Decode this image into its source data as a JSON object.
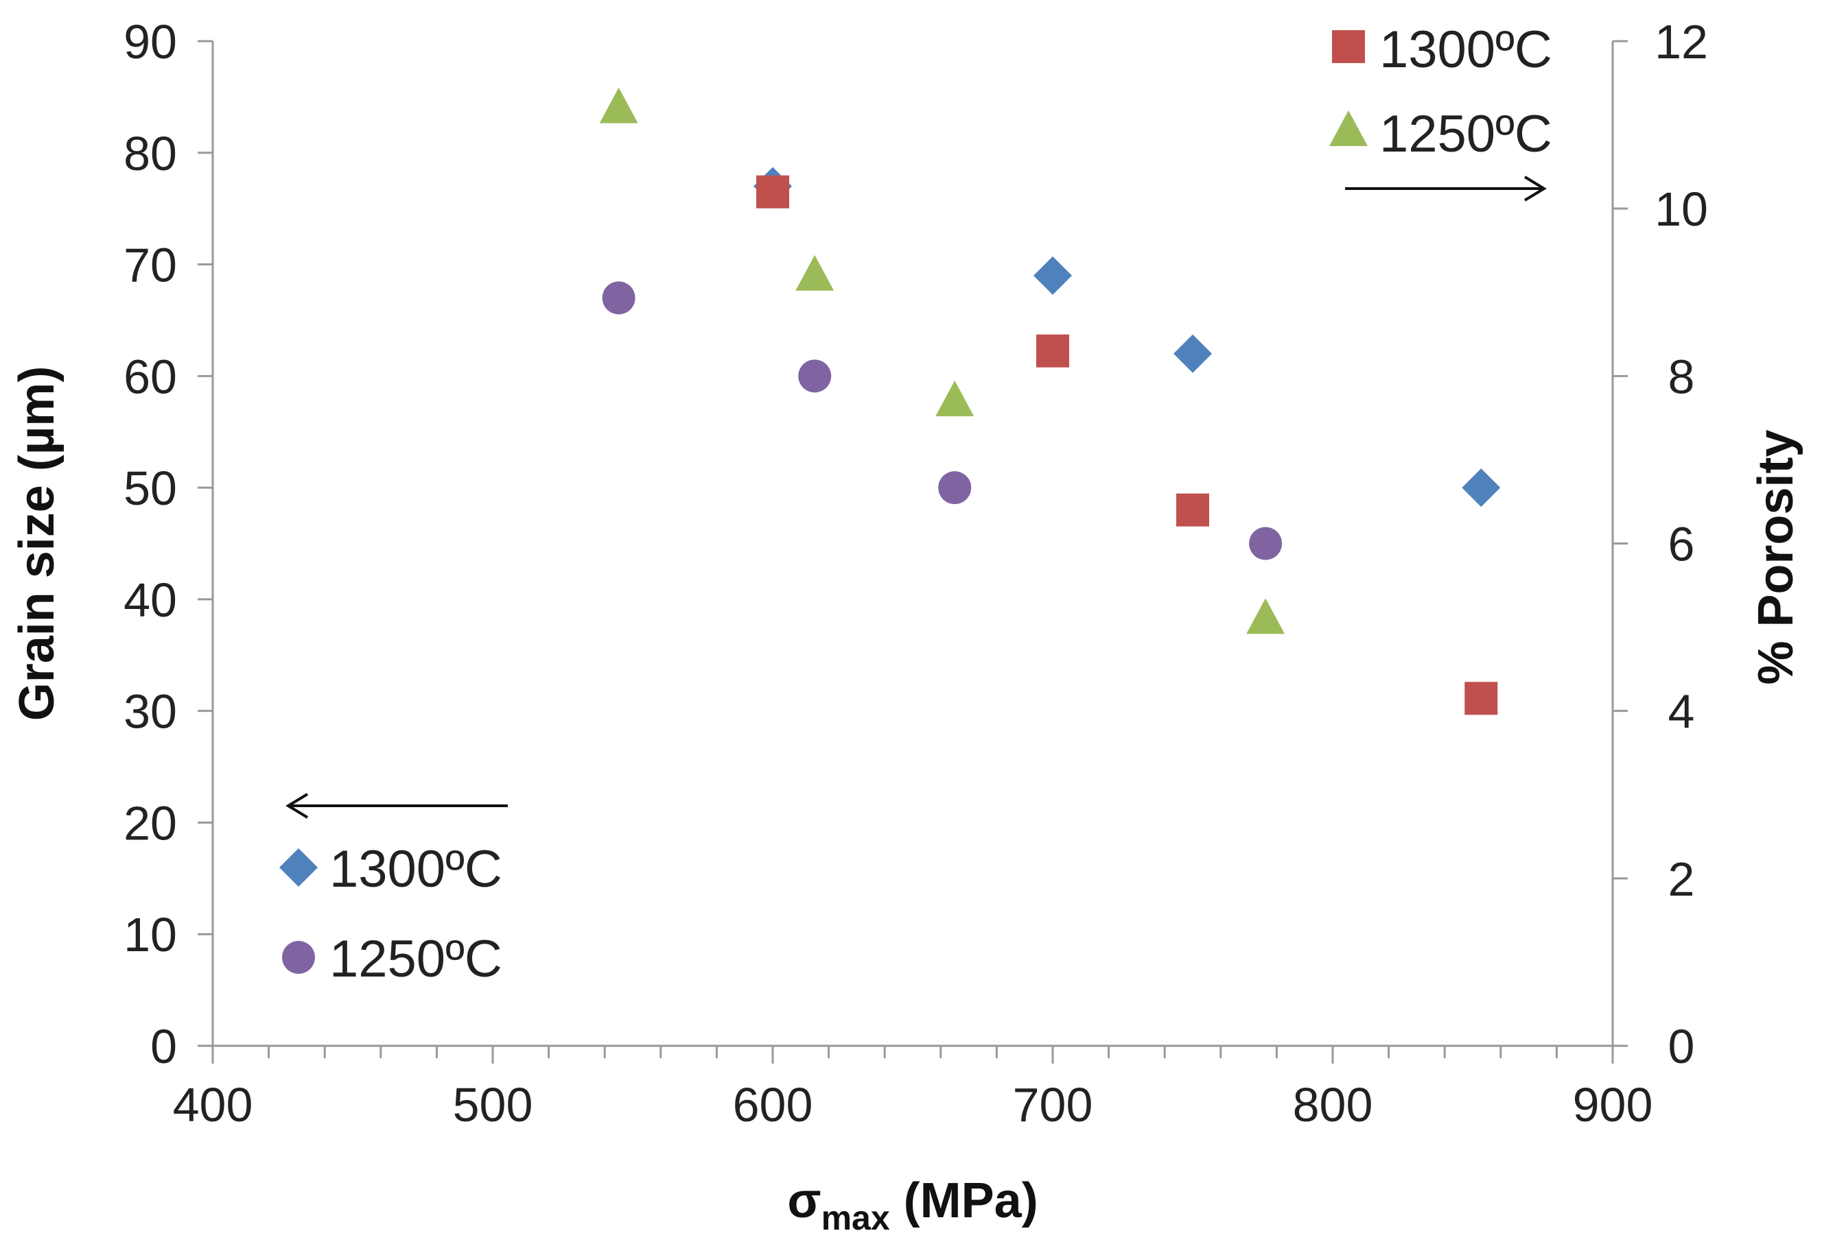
{
  "chart_data": {
    "type": "scatter",
    "title": "",
    "xlabel": {
      "main": "σ",
      "sub": "max",
      "unit": " (MPa)"
    },
    "ylabel_left": "Grain size (µm)",
    "ylabel_right": "% Porosity",
    "xlim": [
      400,
      900
    ],
    "ylim_left": [
      0,
      90
    ],
    "ylim_right": [
      0,
      12
    ],
    "x_ticks": [
      400,
      500,
      600,
      700,
      800,
      900
    ],
    "y_left_ticks": [
      0,
      10,
      20,
      30,
      40,
      50,
      60,
      70,
      80,
      90
    ],
    "y_right_ticks": [
      0,
      2,
      4,
      6,
      8,
      10,
      12
    ],
    "grid": false,
    "series": [
      {
        "name": "1300ºC",
        "axis": "left",
        "marker": "diamond",
        "color": "#4f81bd",
        "x": [
          600,
          700,
          750,
          853
        ],
        "y": [
          77,
          69,
          62,
          50
        ]
      },
      {
        "name": "1250ºC",
        "axis": "left",
        "marker": "circle",
        "color": "#8064a2",
        "x": [
          545,
          615,
          665,
          776
        ],
        "y": [
          67,
          60,
          50,
          45
        ]
      },
      {
        "name": "1300ºC",
        "axis": "right",
        "marker": "square",
        "color": "#c0504d",
        "x": [
          600,
          700,
          750,
          853
        ],
        "y": [
          10.2,
          8.3,
          6.4,
          4.15
        ]
      },
      {
        "name": "1250ºC",
        "axis": "right",
        "marker": "triangle",
        "color": "#9bbb59",
        "x": [
          545,
          615,
          665,
          776
        ],
        "y": [
          11.2,
          9.2,
          7.7,
          5.1
        ]
      }
    ],
    "legend_left": {
      "placement": "bottom-left",
      "items": [
        {
          "label": "1300ºC",
          "marker": "diamond",
          "color": "#4f81bd"
        },
        {
          "label": "1250ºC",
          "marker": "circle",
          "color": "#8064a2"
        }
      ],
      "arrow": "left"
    },
    "legend_right": {
      "placement": "top-right",
      "items": [
        {
          "label": "1300ºC",
          "marker": "square",
          "color": "#c0504d"
        },
        {
          "label": "1250ºC",
          "marker": "triangle",
          "color": "#9bbb59"
        }
      ],
      "arrow": "right"
    }
  }
}
